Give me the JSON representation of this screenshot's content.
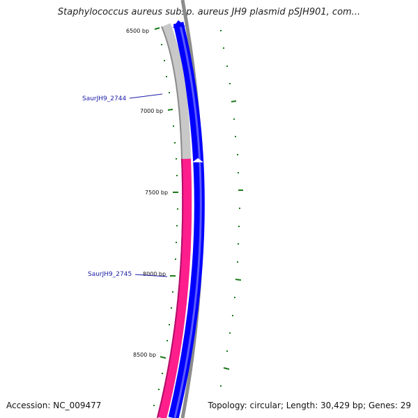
{
  "title": "Staphylococcus aureus subsp. aureus JH9 plasmid pSJH901, com...",
  "footer": {
    "accession": "Accession: NC_009477",
    "summary": "Topology: circular; Length: 30,429 bp; Genes: 29"
  },
  "colors": {
    "gene_gray": "#c8c8c8",
    "gene_pink": "#ff1e8c",
    "gene_blue": "#0000ff",
    "backbone": "#8c8c8c",
    "tick_green": "#1a7a1a",
    "label_blue": "#1a1aa8"
  },
  "bp_labels": [
    "6500 bp",
    "7000 bp",
    "7500 bp",
    "8000 bp",
    "8500 bp"
  ],
  "gene_labels": [
    "SaurJH9_2744",
    "SaurJH9_2745"
  ]
}
